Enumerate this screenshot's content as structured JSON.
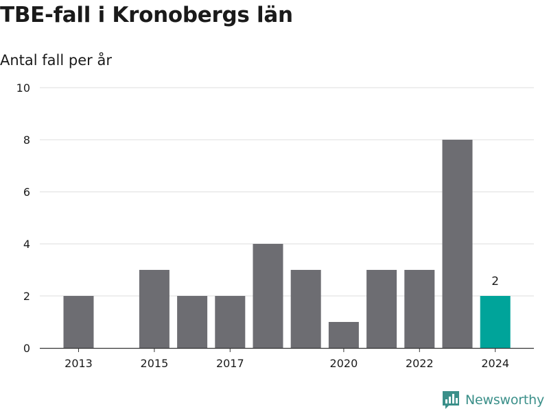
{
  "title": "TBE-fall i Kronobergs län",
  "subtitle": "Antal fall per år",
  "brand": {
    "name": "Newsworthy",
    "icon": "newsworthy-logo-icon",
    "color": "#3a8f89"
  },
  "colors": {
    "bar": "#6d6d72",
    "highlight": "#00a49a",
    "grid": "#dddddd",
    "axis": "#333333"
  },
  "chart_data": {
    "type": "bar",
    "categories": [
      2013,
      2014,
      2015,
      2016,
      2017,
      2018,
      2019,
      2020,
      2021,
      2022,
      2023,
      2024
    ],
    "values": [
      2,
      0,
      3,
      2,
      2,
      4,
      3,
      1,
      3,
      3,
      8,
      2
    ],
    "x_tick_labels": [
      "2013",
      "2015",
      "2017",
      "2020",
      "2022",
      "2024"
    ],
    "y_ticks": [
      0,
      2,
      4,
      6,
      8,
      10
    ],
    "ylim": [
      0,
      10
    ],
    "highlight_category": 2024,
    "annotations": [
      {
        "category": 2024,
        "text": "2"
      }
    ],
    "grid": true,
    "legend": "none"
  }
}
